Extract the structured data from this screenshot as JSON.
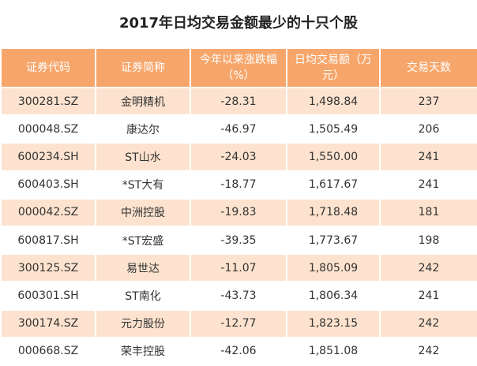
{
  "title": "2017年日均交易金额最少的十只个股",
  "table": {
    "header": [
      "证券代码",
      "证券简称",
      "今年以来涨跌幅（%）",
      "日均交易额（万元）",
      "交易天数"
    ],
    "rows": [
      [
        "300281.SZ",
        "金明精机",
        "-28.31",
        "1,498.84",
        "237"
      ],
      [
        "000048.SZ",
        "康达尔",
        "-46.97",
        "1,505.49",
        "206"
      ],
      [
        "600234.SH",
        "ST山水",
        "-24.03",
        "1,550.00",
        "241"
      ],
      [
        "600403.SH",
        "*ST大有",
        "-18.77",
        "1,617.67",
        "241"
      ],
      [
        "000042.SZ",
        "中洲控股",
        "-19.83",
        "1,718.48",
        "181"
      ],
      [
        "600817.SH",
        "*ST宏盛",
        "-39.35",
        "1,773.67",
        "198"
      ],
      [
        "300125.SZ",
        "易世达",
        "-11.07",
        "1,805.09",
        "242"
      ],
      [
        "600301.SH",
        "ST南化",
        "-43.73",
        "1,806.34",
        "241"
      ],
      [
        "300174.SZ",
        "元力股份",
        "-12.77",
        "1,823.15",
        "242"
      ],
      [
        "000668.SZ",
        "荣丰控股",
        "-42.06",
        "1,851.08",
        "242"
      ]
    ]
  }
}
